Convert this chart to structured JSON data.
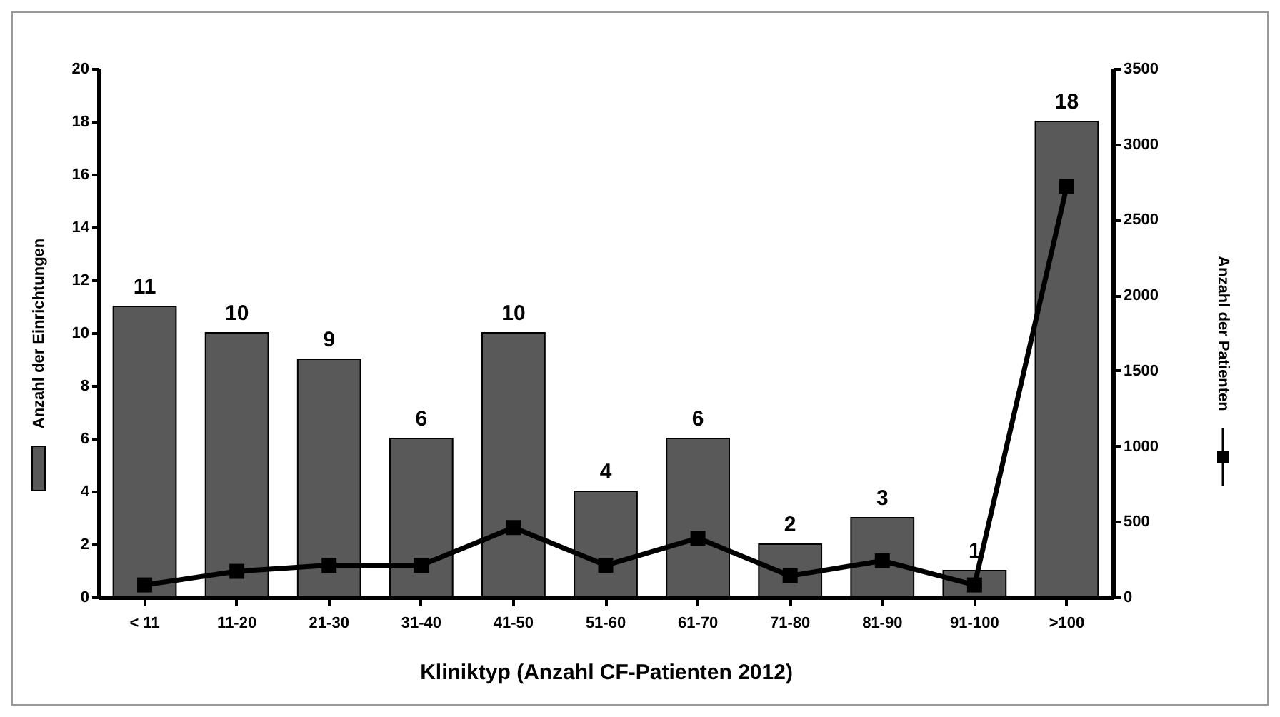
{
  "chart_data": {
    "type": "bar",
    "xlabel": "Kliniktyp (Anzahl CF-Patienten 2012)",
    "ylabel": "Anzahl der Einrichtungen",
    "y2label": "Anzahl der Patienten",
    "categories": [
      "< 11",
      "11-20",
      "21-30",
      "31-40",
      "41-50",
      "51-60",
      "61-70",
      "71-80",
      "81-90",
      "91-100",
      ">100"
    ],
    "series": [
      {
        "color": "#595959",
        "values": [
          11,
          10,
          9,
          6,
          10,
          4,
          6,
          2,
          3,
          1,
          18
        ],
        "value_labels": [
          "11",
          "10",
          "9",
          "6",
          "10",
          "4",
          "6",
          "2",
          "3",
          "1",
          "18"
        ]
      },
      {
        "type": "line",
        "axis": "y2",
        "color": "#000000",
        "values": [
          80,
          170,
          210,
          210,
          460,
          210,
          390,
          140,
          240,
          80,
          2720
        ]
      }
    ],
    "ylim": [
      0,
      20
    ],
    "yticks": [
      0,
      2,
      4,
      6,
      8,
      10,
      12,
      14,
      16,
      18,
      20
    ],
    "y2lim": [
      0,
      3500
    ],
    "y2ticks": [
      0,
      500,
      1000,
      1500,
      2000,
      2500,
      3000,
      3500
    ],
    "grid": false,
    "marker": "square",
    "line_style": "solid"
  }
}
